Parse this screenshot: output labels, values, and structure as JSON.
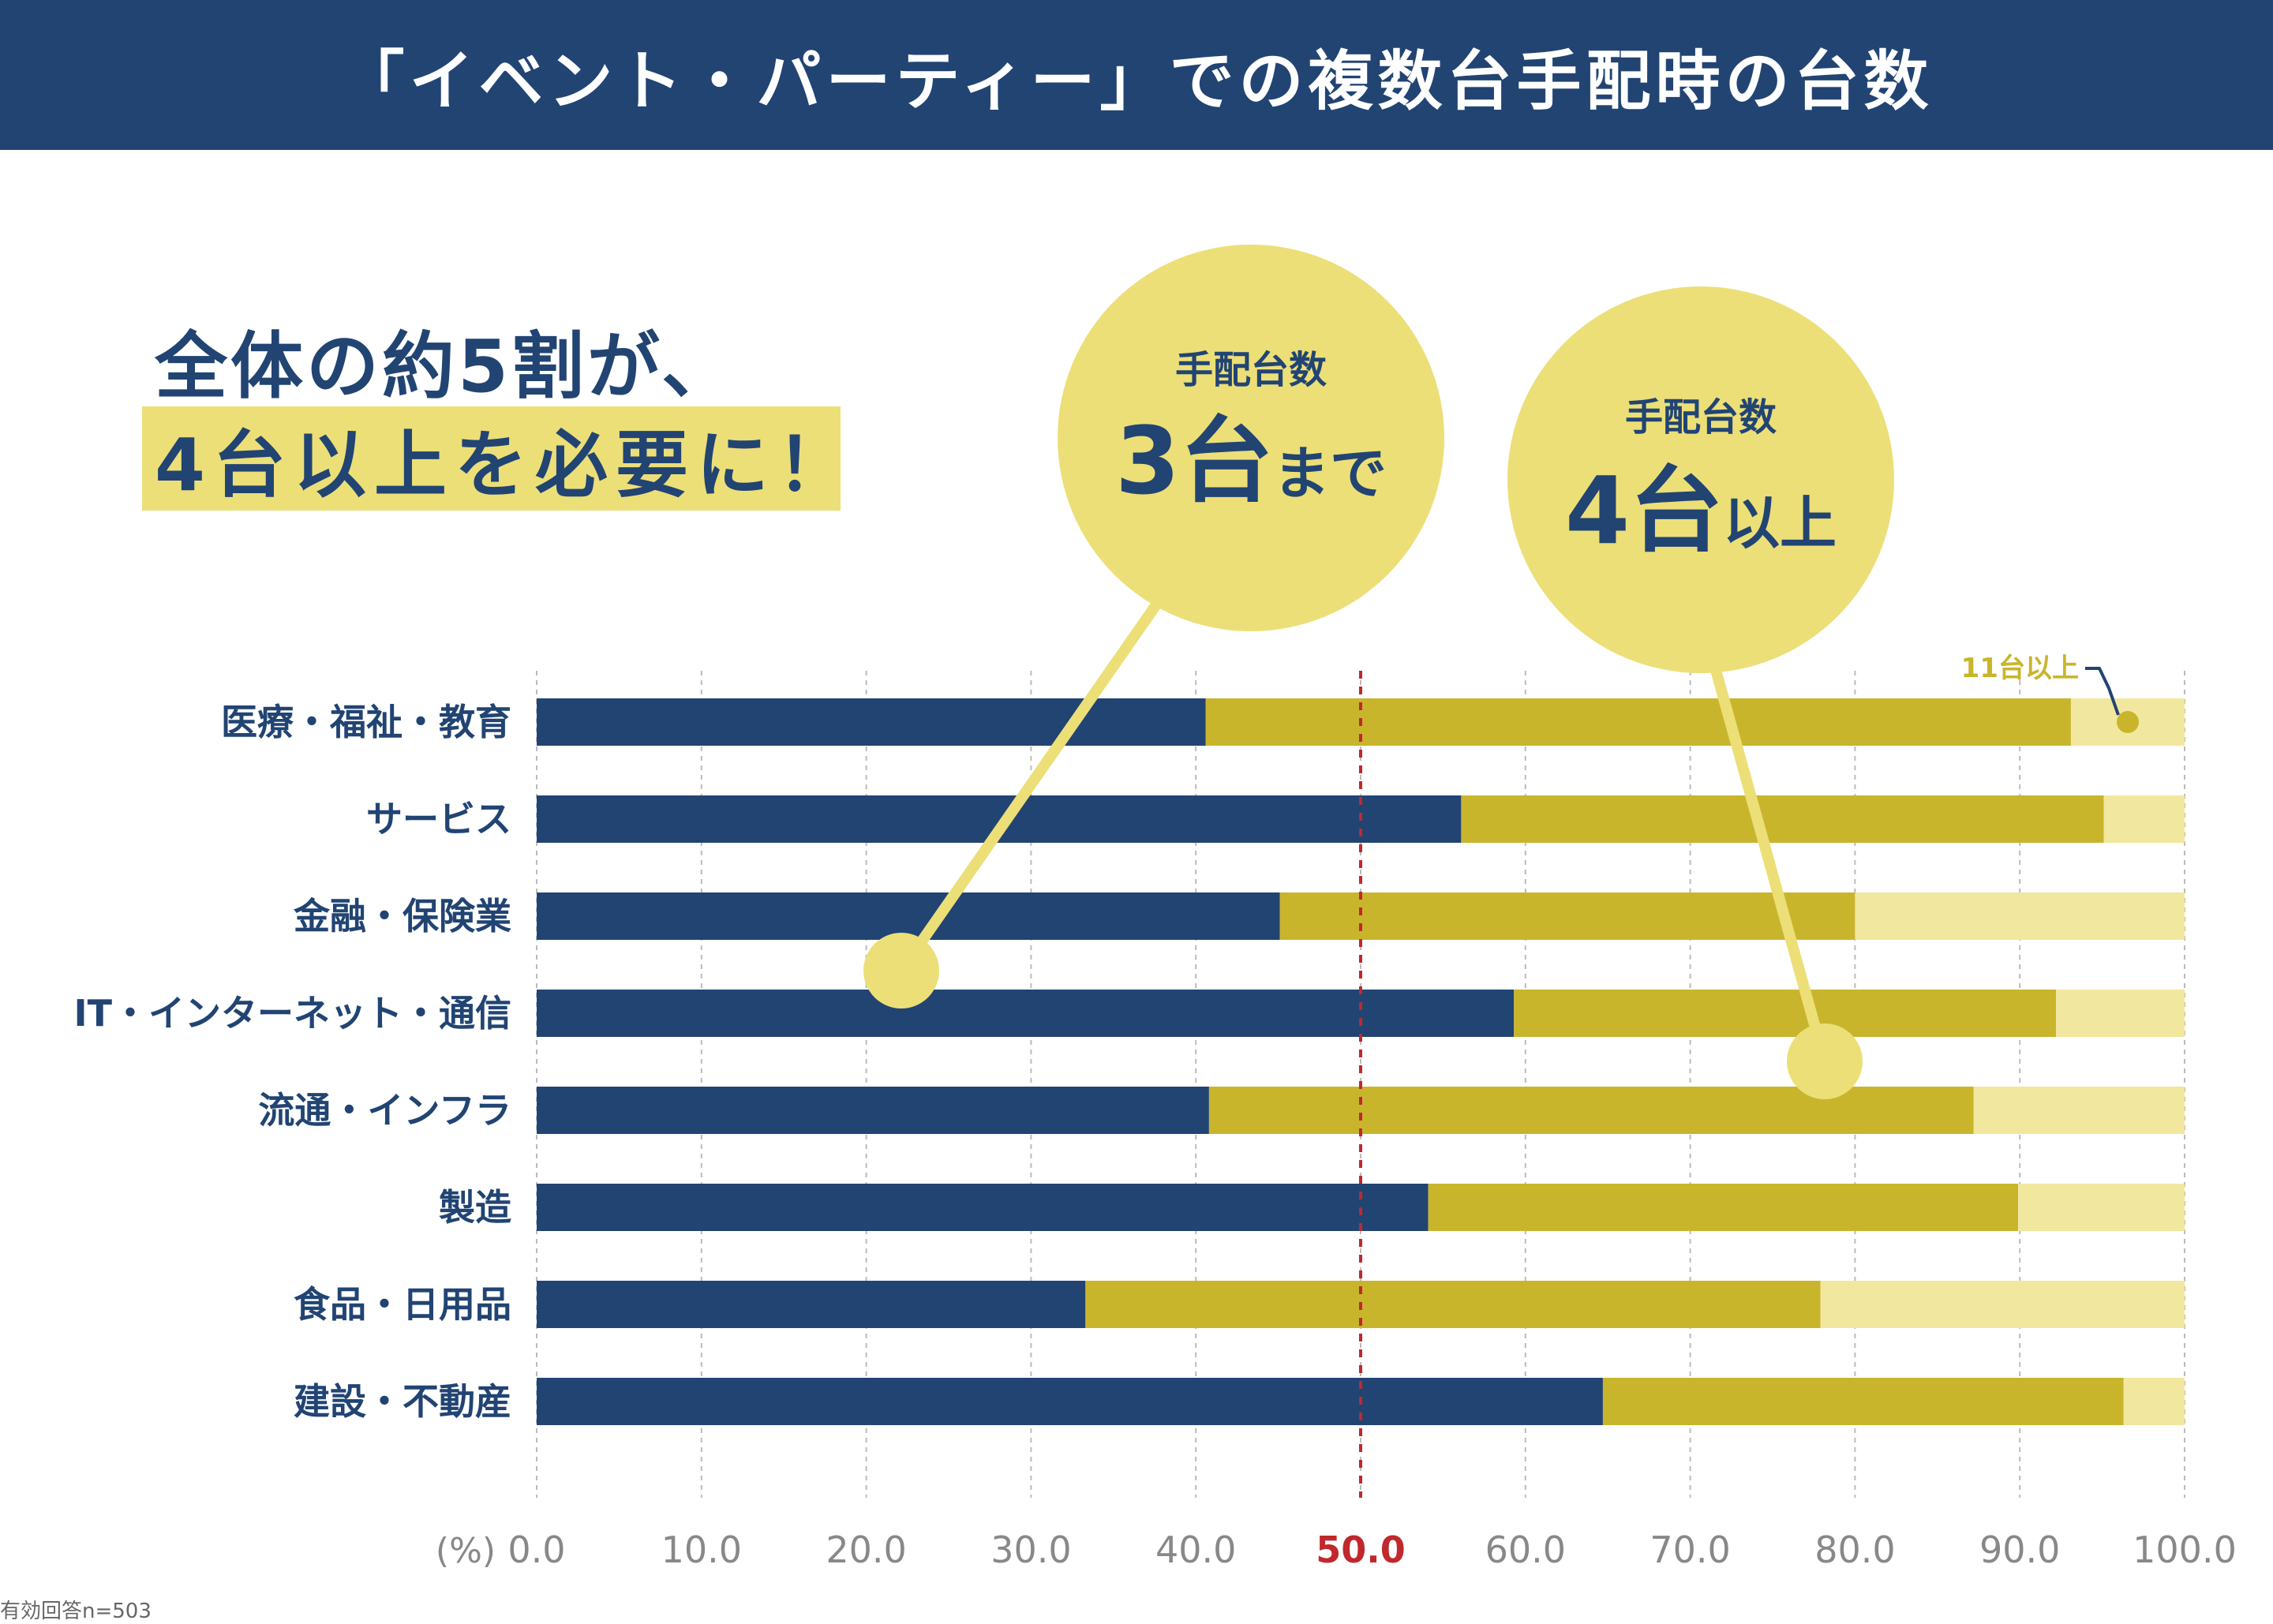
{
  "header": {
    "title": "「イベント・パーティー」での複数台手配時の台数"
  },
  "headline": {
    "line1": "全体の約5割が、",
    "line2": "4台以上を必要に！"
  },
  "bubble_left": {
    "top": "手配台数",
    "main": "3台",
    "suffix": "まで"
  },
  "bubble_right": {
    "top": "手配台数",
    "main": "4台",
    "suffix": "以上"
  },
  "annotation": {
    "label": "11台以上"
  },
  "footnote": "有効回答n=503",
  "colors": {
    "header_bg": "#214473",
    "navy": "#214473",
    "mustard": "#C9B52C",
    "pale_yellow": "#F2E79E",
    "bubble": "#ECDF78",
    "reference_line": "#C0282D",
    "grid": "#BBBBBB",
    "tick_text": "#888888"
  },
  "chart_data": {
    "type": "bar",
    "orientation": "horizontal",
    "stacked": true,
    "xlabel": "(%)",
    "xlim": [
      0,
      100
    ],
    "ticks": [
      "0.0",
      "10.0",
      "20.0",
      "30.0",
      "40.0",
      "50.0",
      "60.0",
      "70.0",
      "80.0",
      "90.0",
      "100.0"
    ],
    "highlight_tick": "50.0",
    "reference_line": 50,
    "categories": [
      "医療・福祉・教育",
      "サービス",
      "金融・保険業",
      "IT・インターネット・通信",
      "流通・インフラ",
      "製造",
      "食品・日用品",
      "建設・不動産"
    ],
    "series": [
      {
        "name": "3台まで",
        "values": [
          40.6,
          56.1,
          45.1,
          59.3,
          40.8,
          54.1,
          33.3,
          64.7
        ]
      },
      {
        "name": "4台以上",
        "values": [
          52.5,
          39.0,
          34.9,
          32.9,
          46.4,
          35.8,
          44.6,
          31.6
        ]
      },
      {
        "name": "11台以上",
        "values": [
          6.9,
          4.9,
          20.0,
          7.8,
          12.8,
          10.1,
          22.1,
          3.7
        ]
      }
    ]
  }
}
